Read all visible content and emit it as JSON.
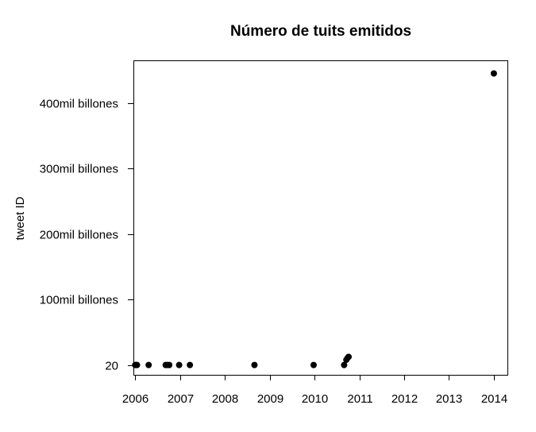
{
  "chart_data": {
    "type": "scatter",
    "title": "Número de tuits emitidos",
    "xlabel": "",
    "ylabel": "tweet ID",
    "xlim": [
      2005.96,
      2014.32
    ],
    "ylim": [
      -15000000000,
      465000000000
    ],
    "x_ticks": [
      {
        "value": 2006,
        "label": "2006"
      },
      {
        "value": 2007,
        "label": "2007"
      },
      {
        "value": 2008,
        "label": "2008"
      },
      {
        "value": 2009,
        "label": "2009"
      },
      {
        "value": 2010,
        "label": "2010"
      },
      {
        "value": 2011,
        "label": "2011"
      },
      {
        "value": 2012,
        "label": "2012"
      },
      {
        "value": 2013,
        "label": "2013"
      },
      {
        "value": 2014,
        "label": "2014"
      }
    ],
    "y_ticks": [
      {
        "value": 20,
        "label": "20"
      },
      {
        "value": 100000000000,
        "label": "100mil billones"
      },
      {
        "value": 200000000000,
        "label": "200mil billones"
      },
      {
        "value": 300000000000,
        "label": "300mil billones"
      },
      {
        "value": 400000000000,
        "label": "400mil billones"
      }
    ],
    "points": [
      {
        "x": 2006.0,
        "y": 20
      },
      {
        "x": 2006.02,
        "y": 20
      },
      {
        "x": 2006.04,
        "y": 20
      },
      {
        "x": 2006.3,
        "y": 20
      },
      {
        "x": 2006.68,
        "y": 20
      },
      {
        "x": 2006.72,
        "y": 20
      },
      {
        "x": 2006.76,
        "y": 20
      },
      {
        "x": 2006.98,
        "y": 20
      },
      {
        "x": 2007.22,
        "y": 20
      },
      {
        "x": 2008.66,
        "y": 20
      },
      {
        "x": 2009.98,
        "y": 20
      },
      {
        "x": 2010.66,
        "y": 20
      },
      {
        "x": 2010.71,
        "y": 8000000000
      },
      {
        "x": 2010.74,
        "y": 11000000000
      },
      {
        "x": 2010.76,
        "y": 12500000000
      },
      {
        "x": 2014.0,
        "y": 445000000000
      }
    ],
    "grid": false,
    "legend": "none"
  }
}
